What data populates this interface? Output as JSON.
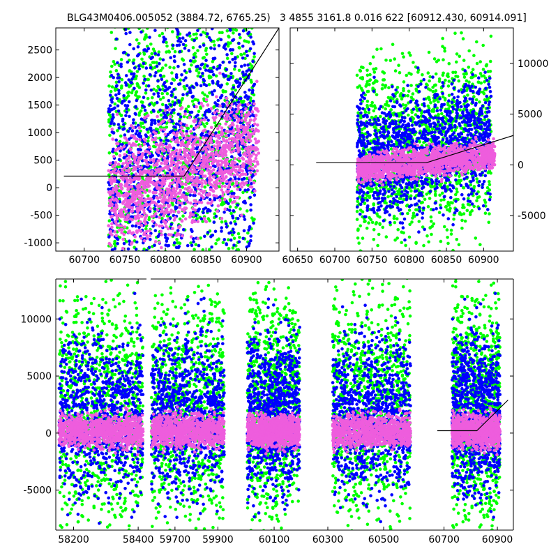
{
  "titles": {
    "left": "BLG43M0406.005052 (3884.72, 6765.25)",
    "right": "3 4855 3161.8 0.016 622 [60912.430, 60914.091]"
  },
  "colors": {
    "green": "#00ff00",
    "blue": "#0000ff",
    "pink": "#ee5ddd",
    "model_line": "#000000"
  },
  "chart_data": [
    {
      "type": "scatter",
      "title": "BLG43M0406.005052 (3884.72, 6765.25)",
      "xlim": [
        60665,
        60940
      ],
      "ylim": [
        -1150,
        2900
      ],
      "xticks": [
        60700,
        60750,
        60800,
        60850,
        60900
      ],
      "yticks": [
        -1000,
        -500,
        0,
        500,
        1000,
        1500,
        2000,
        2500
      ],
      "y_axis_side": "left",
      "grid": false,
      "series": [
        {
          "color": "green",
          "x_range": [
            60730,
            60910
          ],
          "y_center": 1100,
          "y_spread": 1700,
          "slope": 12
        },
        {
          "color": "blue",
          "x_range": [
            60730,
            60910
          ],
          "y_center": 700,
          "y_spread": 1300,
          "slope": 10
        },
        {
          "color": "pink",
          "x_range": [
            60730,
            60915
          ],
          "y_center": 300,
          "y_spread": 500,
          "slope": 9
        }
      ],
      "model_line": {
        "x": [
          60675,
          60823,
          60940
        ],
        "y": [
          210,
          210,
          2900
        ]
      }
    },
    {
      "type": "scatter",
      "title": "3 4855 3161.8 0.016 622 [60912.430, 60914.091]",
      "xlim": [
        60640,
        60940
      ],
      "ylim": [
        -8500,
        13500
      ],
      "xticks": [
        60650,
        60700,
        60750,
        60800,
        60850,
        60900
      ],
      "yticks": [
        -5000,
        0,
        5000,
        10000
      ],
      "y_axis_side": "right",
      "grid": false,
      "series": [
        {
          "color": "green",
          "x_range": [
            60730,
            60910
          ],
          "y_center": 2000,
          "y_spread": 4500,
          "slope": 20
        },
        {
          "color": "blue",
          "x_range": [
            60730,
            60910
          ],
          "y_center": 1500,
          "y_spread": 3000,
          "slope": 20
        },
        {
          "color": "pink",
          "x_range": [
            60730,
            60915
          ],
          "y_center": 300,
          "y_spread": 700,
          "slope": 12
        }
      ],
      "model_line": {
        "x": [
          60675,
          60823,
          60940
        ],
        "y": [
          210,
          210,
          2900
        ]
      }
    },
    {
      "type": "scatter",
      "title": "",
      "ylim": [
        -8500,
        13500
      ],
      "yticks": [
        -5000,
        0,
        5000,
        10000
      ],
      "y_axis_side": "left",
      "grid": false,
      "broken_x_axis": true,
      "segments": [
        {
          "xlim": [
            58145,
            58430
          ],
          "xticks": [
            58200,
            58400
          ],
          "data_range": [
            58155,
            58415
          ]
        },
        {
          "xlim": [
            59580,
            59990
          ],
          "xticks": [
            59700,
            59900
          ],
          "data_range": [
            59590,
            59930
          ]
        },
        {
          "xlim": [
            59970,
            60300
          ],
          "xticks": [
            60100,
            60300
          ],
          "data_range": [
            60000,
            60195
          ]
        },
        {
          "xlim": [
            60300,
            60640
          ],
          "xticks": [
            60500
          ],
          "data_range": [
            60310,
            60600
          ]
        },
        {
          "xlim": [
            60620,
            60960
          ],
          "xticks": [
            60700,
            60900
          ],
          "data_range": [
            60730,
            60910
          ]
        }
      ],
      "series": [
        {
          "color": "green",
          "y_center": 2500,
          "y_spread": 5000
        },
        {
          "color": "blue",
          "y_center": 1800,
          "y_spread": 3500
        },
        {
          "color": "pink",
          "y_center": 200,
          "y_spread": 700
        }
      ],
      "model_line": {
        "x": [
          60675,
          60823,
          60940
        ],
        "y": [
          210,
          210,
          2900
        ]
      }
    }
  ]
}
